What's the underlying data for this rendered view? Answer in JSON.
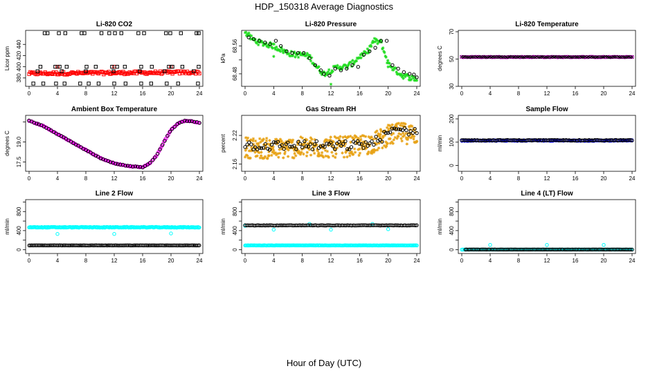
{
  "title": "HDP_150318  Average Diagnostics",
  "xlabel": "Hour of Day (UTC)",
  "x_ticks": [
    "0",
    "4",
    "8",
    "12",
    "16",
    "20",
    "24"
  ],
  "chart_data": [
    {
      "type": "scatter",
      "title": "Li-820 CO2",
      "ylabel": "Licor ppm",
      "xlim": [
        0,
        24
      ],
      "ylim": [
        365,
        465
      ],
      "yticks": [
        380,
        400,
        420,
        440
      ],
      "series": [
        {
          "color": "#ff0000",
          "shape": "square",
          "pattern": "band",
          "x": [
            0,
            24
          ],
          "y": [
            388,
            390
          ],
          "n": 140,
          "spread": 2.5
        },
        {
          "color": "#ff0000",
          "shape": "square",
          "x": [
            4,
            12,
            20
          ],
          "y": [
            400,
            400,
            400
          ]
        },
        {
          "color": "#000000",
          "shape": "square",
          "x": [
            2.2,
            2.6,
            4.2,
            5.1,
            7.4,
            7.8,
            10.2,
            11.3,
            12.1,
            13.0,
            15.4,
            16.2,
            19.3,
            19.9,
            21.4,
            23.6,
            23.9
          ],
          "y": [
            460,
            460,
            460,
            460,
            460,
            460,
            460,
            460,
            460,
            460,
            460,
            460,
            460,
            460,
            460,
            460,
            460
          ]
        },
        {
          "color": "#000000",
          "shape": "square",
          "x": [
            0.6,
            2.0,
            3.8,
            5.0,
            7.2,
            8.4,
            9.8,
            12.0,
            13.6,
            15.8,
            17.2,
            19.4,
            21.0,
            23.8
          ],
          "y": [
            370,
            370,
            370,
            370,
            370,
            370,
            370,
            370,
            370,
            370,
            370,
            370,
            370,
            370
          ]
        },
        {
          "color": "#000000",
          "shape": "square",
          "x": [
            1.6,
            3.7,
            4.3,
            5.3,
            8.1,
            9.4,
            11.7,
            12.4,
            13.5,
            15.8,
            17.3,
            19.7,
            20.2,
            21.6,
            23.9
          ],
          "y": [
            400,
            400,
            400,
            400,
            400,
            400,
            400,
            400,
            400,
            400,
            400,
            400,
            400,
            400,
            400
          ]
        },
        {
          "color": "#000000",
          "shape": "square",
          "x": [
            1.2,
            4.6,
            8.0,
            11.9,
            15.6,
            19.1,
            23.2
          ],
          "y": [
            392,
            392,
            392,
            392,
            392,
            392,
            392
          ]
        }
      ]
    },
    {
      "type": "scatter",
      "title": "Li-820 Pressure",
      "ylabel": "kPa",
      "xlim": [
        0,
        24
      ],
      "ylim": [
        68.444,
        68.605
      ],
      "yticks": [
        68.48,
        68.52,
        68.56
      ],
      "yticklabels": [
        "68.48",
        "",
        "68.56"
      ],
      "series": [
        {
          "color": "#22dd22",
          "shape": "star",
          "pattern": "band",
          "x": [
            0,
            0.5,
            1,
            2,
            3,
            4,
            5,
            6,
            7,
            8,
            9,
            10,
            11,
            12,
            13,
            14,
            15,
            16,
            17,
            18,
            19,
            20,
            21,
            22,
            23,
            24
          ],
          "y": [
            68.6,
            68.59,
            68.58,
            68.57,
            68.565,
            68.56,
            68.55,
            68.54,
            68.535,
            68.535,
            68.53,
            68.5,
            68.48,
            68.49,
            68.5,
            68.5,
            68.51,
            68.53,
            68.54,
            68.575,
            68.57,
            68.51,
            68.49,
            68.475,
            68.47,
            68.465
          ],
          "n": 220,
          "spread": 0.008
        },
        {
          "color": "#22dd22",
          "shape": "star",
          "x": [
            4,
            12,
            20
          ],
          "y": [
            68.53,
            68.45,
            68.5
          ]
        },
        {
          "color": "#000000",
          "shape": "circle",
          "x": [
            0.5,
            1.2,
            2.0,
            2.8,
            3.5,
            4.3,
            5.0,
            5.8,
            6.6,
            7.4,
            8.2,
            9.0,
            9.8,
            10.6,
            11.0,
            11.8,
            12.6,
            13.4,
            14.2,
            15.0,
            15.8,
            16.6,
            17.4,
            18.2,
            19.0,
            19.8,
            20.6,
            21.4,
            22.2,
            23.0,
            23.6,
            24.0
          ],
          "y": [
            68.585,
            68.58,
            68.575,
            68.57,
            68.565,
            68.575,
            68.56,
            68.545,
            68.54,
            68.54,
            68.54,
            68.525,
            68.505,
            68.49,
            68.48,
            68.475,
            68.495,
            68.49,
            68.495,
            68.505,
            68.5,
            68.535,
            68.545,
            68.555,
            68.575,
            68.575,
            68.505,
            68.495,
            68.485,
            68.48,
            68.478,
            68.47
          ]
        }
      ]
    },
    {
      "type": "scatter",
      "title": "Li-820 Temperature",
      "ylabel": "degrees C",
      "xlim": [
        0,
        24
      ],
      "ylim": [
        30,
        71
      ],
      "yticks": [
        30,
        50,
        70
      ],
      "series": [
        {
          "color": "#ff00ff",
          "shape": "circle",
          "pattern": "band",
          "x": [
            0,
            24
          ],
          "y": [
            51.5,
            51.5
          ],
          "n": 120,
          "spread": 0.2
        },
        {
          "color": "#000000",
          "shape": "x",
          "pattern": "band",
          "x": [
            0,
            24
          ],
          "y": [
            51.5,
            51.5
          ],
          "n": 110,
          "spread": 0.2
        }
      ]
    },
    {
      "type": "scatter",
      "title": "Ambient Box Temperature",
      "ylabel": "degrees C",
      "xlim": [
        0,
        24
      ],
      "ylim": [
        16.8,
        21.0
      ],
      "yticks": [
        17.5,
        19.0,
        20.5
      ],
      "yticklabels": [
        "17.5",
        "19.0",
        ""
      ],
      "series": [
        {
          "color": "#ff00ff",
          "shape": "circle",
          "pattern": "band",
          "x": [
            0,
            1,
            2,
            3,
            4,
            5,
            6,
            7,
            8,
            9,
            10,
            11,
            12,
            13,
            14,
            15,
            16,
            17,
            18,
            19,
            20,
            21,
            22,
            23,
            24
          ],
          "y": [
            20.6,
            20.4,
            20.2,
            19.9,
            19.6,
            19.3,
            19.0,
            18.7,
            18.4,
            18.1,
            17.8,
            17.6,
            17.4,
            17.3,
            17.2,
            17.15,
            17.1,
            17.4,
            18.0,
            19.0,
            19.9,
            20.4,
            20.6,
            20.55,
            20.45
          ],
          "n": 160,
          "spread": 0.03
        },
        {
          "color": "#000000",
          "shape": "circle",
          "pattern": "band",
          "x": [
            0,
            1,
            2,
            3,
            4,
            5,
            6,
            7,
            8,
            9,
            10,
            11,
            12,
            13,
            14,
            15,
            16,
            17,
            18,
            19,
            20,
            21,
            22,
            23,
            24
          ],
          "y": [
            20.6,
            20.4,
            20.2,
            19.9,
            19.6,
            19.3,
            19.0,
            18.7,
            18.4,
            18.1,
            17.8,
            17.6,
            17.4,
            17.3,
            17.2,
            17.15,
            17.1,
            17.4,
            18.0,
            19.0,
            19.9,
            20.4,
            20.6,
            20.55,
            20.45
          ],
          "n": 70,
          "spread": 0.02
        }
      ]
    },
    {
      "type": "scatter",
      "title": "Gas Stream RH",
      "ylabel": "percent",
      "xlim": [
        0,
        24
      ],
      "ylim": [
        2.145,
        2.262
      ],
      "yticks": [
        2.16,
        2.22
      ],
      "series": [
        {
          "color": "#e8a317",
          "shape": "star",
          "pattern": "band",
          "x": [
            0,
            4,
            8,
            12,
            16,
            18,
            20,
            22,
            24
          ],
          "y": [
            2.195,
            2.192,
            2.195,
            2.195,
            2.198,
            2.205,
            2.22,
            2.225,
            2.222
          ],
          "n": 420,
          "spread": 0.022
        },
        {
          "color": "#000000",
          "shape": "circle",
          "pattern": "band",
          "x": [
            0,
            4,
            8,
            12,
            16,
            18,
            20,
            22,
            24
          ],
          "y": [
            2.2,
            2.198,
            2.2,
            2.197,
            2.2,
            2.205,
            2.225,
            2.232,
            2.228
          ],
          "n": 85,
          "spread": 0.01
        }
      ]
    },
    {
      "type": "scatter",
      "title": "Sample Flow",
      "ylabel": "ml/min",
      "xlim": [
        0,
        24
      ],
      "ylim": [
        -25,
        215
      ],
      "yticks": [
        0,
        100,
        200
      ],
      "series": [
        {
          "color": "#0000ff",
          "shape": "circle",
          "pattern": "band",
          "x": [
            0,
            24
          ],
          "y": [
            107,
            107
          ],
          "n": 130,
          "spread": 1.5
        },
        {
          "color": "#000000",
          "shape": "circle",
          "pattern": "band",
          "x": [
            0,
            24
          ],
          "y": [
            108,
            108
          ],
          "n": 120,
          "spread": 1.5
        }
      ]
    },
    {
      "type": "scatter",
      "title": "Line 2 Flow",
      "ylabel": "ml/min",
      "xlim": [
        0,
        24
      ],
      "ylim": [
        -80,
        1050
      ],
      "yticks": [
        0,
        200,
        400,
        600,
        800,
        1000
      ],
      "yticklabels": [
        "0",
        "",
        "400",
        "",
        "800",
        ""
      ],
      "series": [
        {
          "color": "#00ffff",
          "shape": "circle",
          "pattern": "band",
          "x": [
            0,
            24
          ],
          "y": [
            470,
            470
          ],
          "n": 230,
          "spread": 8
        },
        {
          "color": "#00ffff",
          "shape": "circle",
          "x": [
            4,
            12,
            20
          ],
          "y": [
            330,
            330,
            340
          ]
        },
        {
          "color": "#000000",
          "shape": "circle",
          "pattern": "band",
          "x": [
            0,
            24
          ],
          "y": [
            90,
            90
          ],
          "n": 130,
          "spread": 2
        }
      ]
    },
    {
      "type": "scatter",
      "title": "Line 3 Flow",
      "ylabel": "ml/min",
      "xlim": [
        0,
        24
      ],
      "ylim": [
        -80,
        1050
      ],
      "yticks": [
        0,
        200,
        400,
        600,
        800,
        1000
      ],
      "yticklabels": [
        "0",
        "",
        "400",
        "",
        "800",
        ""
      ],
      "series": [
        {
          "color": "#00ffff",
          "shape": "circle",
          "pattern": "band",
          "x": [
            0,
            24
          ],
          "y": [
            90,
            90
          ],
          "n": 230,
          "spread": 3
        },
        {
          "color": "#00ffff",
          "shape": "circle",
          "x": [
            0,
            4,
            9,
            12,
            17.8,
            20
          ],
          "y": [
            500,
            420,
            540,
            420,
            540,
            430
          ]
        },
        {
          "color": "#000000",
          "shape": "circle",
          "pattern": "band",
          "x": [
            0,
            24
          ],
          "y": [
            510,
            510
          ],
          "n": 120,
          "spread": 4
        }
      ]
    },
    {
      "type": "scatter",
      "title": "Line 4 (LT) Flow",
      "ylabel": "ml/min",
      "xlim": [
        0,
        24
      ],
      "ylim": [
        -80,
        1050
      ],
      "yticks": [
        0,
        200,
        400,
        600,
        800,
        1000
      ],
      "yticklabels": [
        "0",
        "",
        "400",
        "",
        "800",
        ""
      ],
      "series": [
        {
          "color": "#00ffff",
          "shape": "circle",
          "pattern": "band",
          "x": [
            0,
            24
          ],
          "y": [
            2,
            2
          ],
          "n": 150,
          "spread": 1
        },
        {
          "color": "#00ffff",
          "shape": "circle",
          "x": [
            4,
            12,
            20
          ],
          "y": [
            100,
            100,
            100
          ]
        },
        {
          "color": "#000000",
          "shape": "circle",
          "pattern": "band",
          "x": [
            0.5,
            24
          ],
          "y": [
            3,
            3
          ],
          "n": 110,
          "spread": 1
        }
      ]
    }
  ]
}
